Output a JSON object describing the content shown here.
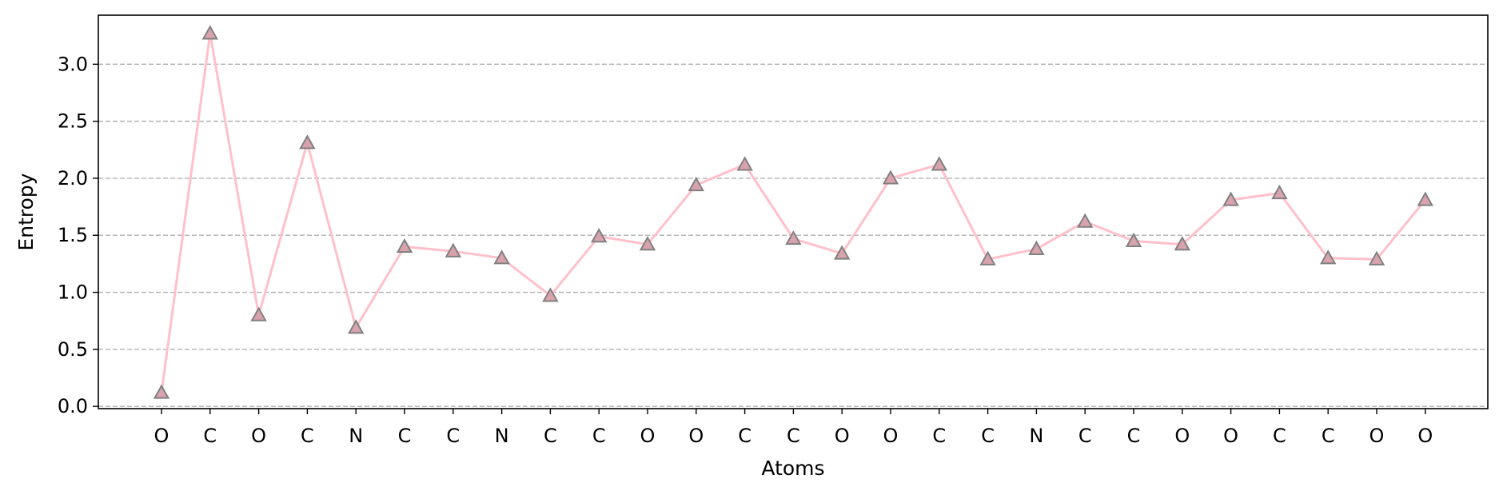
{
  "chart_data": {
    "type": "line",
    "title": "",
    "xlabel": "Atoms",
    "ylabel": "Entropy",
    "categories": [
      "O",
      "C",
      "O",
      "C",
      "N",
      "C",
      "C",
      "N",
      "C",
      "C",
      "O",
      "O",
      "C",
      "C",
      "O",
      "O",
      "C",
      "C",
      "N",
      "C",
      "C",
      "O",
      "O",
      "C",
      "C",
      "O",
      "O"
    ],
    "series": [
      {
        "values": [
          0.12,
          3.27,
          0.8,
          2.31,
          0.69,
          1.4,
          1.36,
          1.3,
          0.97,
          1.49,
          1.42,
          1.94,
          2.12,
          1.47,
          1.34,
          2.0,
          2.12,
          1.29,
          1.38,
          1.62,
          1.45,
          1.42,
          1.81,
          1.87,
          1.3,
          1.29,
          1.81
        ]
      }
    ],
    "ylim": [
      -0.02,
      3.43
    ],
    "yticks": [
      "0.0",
      "0.5",
      "1.0",
      "1.5",
      "2.0",
      "2.5",
      "3.0"
    ],
    "grid": "horizontal dashed",
    "line_color": "#ffc0cb",
    "marker": "triangle",
    "marker_face_color": "#d9a3ad",
    "marker_edge_color": "#808080",
    "grid_color": "#b0b0b0"
  }
}
